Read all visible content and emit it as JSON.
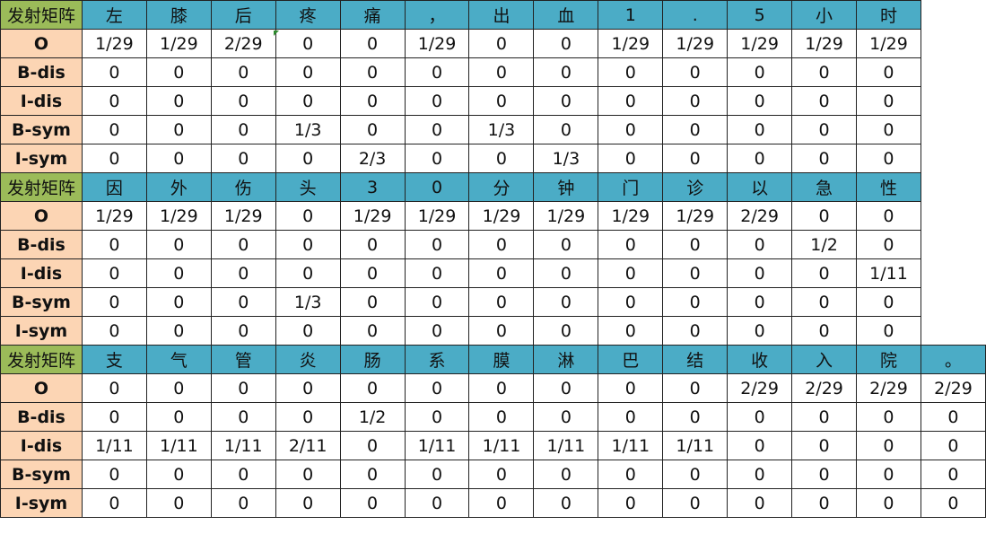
{
  "blocks": [
    {
      "title": "发射矩阵",
      "chars": [
        "左",
        "膝",
        "后",
        "疼",
        "痛",
        "，",
        "出",
        "血",
        "1",
        ".",
        "5",
        "小",
        "时"
      ],
      "rows": [
        {
          "label": "O",
          "values": [
            "1/29",
            "1/29",
            "2/29",
            "0",
            "0",
            "1/29",
            "0",
            "0",
            "1/29",
            "1/29",
            "1/29",
            "1/29",
            "1/29"
          ]
        },
        {
          "label": "B-dis",
          "values": [
            "0",
            "0",
            "0",
            "0",
            "0",
            "0",
            "0",
            "0",
            "0",
            "0",
            "0",
            "0",
            "0"
          ]
        },
        {
          "label": "I-dis",
          "values": [
            "0",
            "0",
            "0",
            "0",
            "0",
            "0",
            "0",
            "0",
            "0",
            "0",
            "0",
            "0",
            "0"
          ]
        },
        {
          "label": "B-sym",
          "values": [
            "0",
            "0",
            "0",
            "1/3",
            "0",
            "0",
            "1/3",
            "0",
            "0",
            "0",
            "0",
            "0",
            "0"
          ]
        },
        {
          "label": "I-sym",
          "values": [
            "0",
            "0",
            "0",
            "0",
            "2/3",
            "0",
            "0",
            "1/3",
            "0",
            "0",
            "0",
            "0",
            "0"
          ]
        }
      ]
    },
    {
      "title": "发射矩阵",
      "chars": [
        "因",
        "外",
        "伤",
        "头",
        "3",
        "0",
        "分",
        "钟",
        "门",
        "诊",
        "以",
        "急",
        "性"
      ],
      "rows": [
        {
          "label": "O",
          "values": [
            "1/29",
            "1/29",
            "1/29",
            "0",
            "1/29",
            "1/29",
            "1/29",
            "1/29",
            "1/29",
            "1/29",
            "2/29",
            "0",
            "0"
          ]
        },
        {
          "label": "B-dis",
          "values": [
            "0",
            "0",
            "0",
            "0",
            "0",
            "0",
            "0",
            "0",
            "0",
            "0",
            "0",
            "1/2",
            "0"
          ]
        },
        {
          "label": "I-dis",
          "values": [
            "0",
            "0",
            "0",
            "0",
            "0",
            "0",
            "0",
            "0",
            "0",
            "0",
            "0",
            "0",
            "1/11"
          ]
        },
        {
          "label": "B-sym",
          "values": [
            "0",
            "0",
            "0",
            "1/3",
            "0",
            "0",
            "0",
            "0",
            "0",
            "0",
            "0",
            "0",
            "0"
          ]
        },
        {
          "label": "I-sym",
          "values": [
            "0",
            "0",
            "0",
            "0",
            "0",
            "0",
            "0",
            "0",
            "0",
            "0",
            "0",
            "0",
            "0"
          ]
        }
      ]
    },
    {
      "title": "发射矩阵",
      "chars": [
        "支",
        "气",
        "管",
        "炎",
        "肠",
        "系",
        "膜",
        "淋",
        "巴",
        "结",
        "收",
        "入",
        "院",
        "。"
      ],
      "rows": [
        {
          "label": "O",
          "values": [
            "0",
            "0",
            "0",
            "0",
            "0",
            "0",
            "0",
            "0",
            "0",
            "0",
            "2/29",
            "2/29",
            "2/29",
            "2/29"
          ]
        },
        {
          "label": "B-dis",
          "values": [
            "0",
            "0",
            "0",
            "0",
            "1/2",
            "0",
            "0",
            "0",
            "0",
            "0",
            "0",
            "0",
            "0",
            "0"
          ]
        },
        {
          "label": "I-dis",
          "values": [
            "1/11",
            "1/11",
            "1/11",
            "2/11",
            "0",
            "1/11",
            "1/11",
            "1/11",
            "1/11",
            "1/11",
            "0",
            "0",
            "0",
            "0"
          ]
        },
        {
          "label": "B-sym",
          "values": [
            "0",
            "0",
            "0",
            "0",
            "0",
            "0",
            "0",
            "0",
            "0",
            "0",
            "0",
            "0",
            "0",
            "0"
          ]
        },
        {
          "label": "I-sym",
          "values": [
            "0",
            "0",
            "0",
            "0",
            "0",
            "0",
            "0",
            "0",
            "0",
            "0",
            "0",
            "0",
            "0",
            "0"
          ]
        }
      ]
    }
  ],
  "colors": {
    "title_bg": "#9bbb59",
    "char_bg": "#4bacc6",
    "label_bg": "#fcd5b4",
    "cell_bg": "#ffffff",
    "border": "#222222"
  }
}
